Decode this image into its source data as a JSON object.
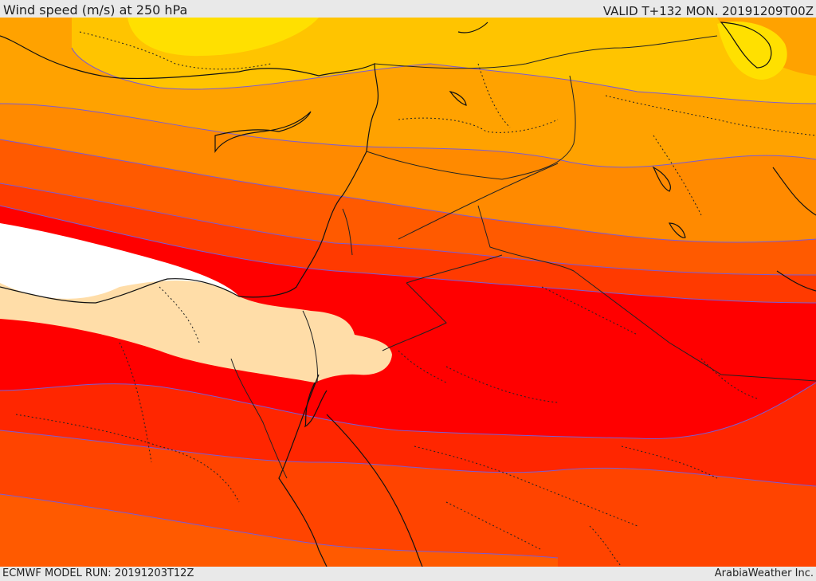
{
  "header": {
    "title": "Wind speed (m/s) at 250 hPa",
    "valid": "VALID T+132 MON. 20191209T00Z"
  },
  "footer": {
    "model_run": "ECMWF MODEL RUN: 20191203T12Z",
    "credit": "ArabiaWeather Inc."
  },
  "colors": {
    "background": "#e9e9e9",
    "contour_line": "#7a5bd6",
    "coastline": "#111111",
    "border": "#222222",
    "wind_bands": [
      "#ffe000",
      "#ffc400",
      "#ffa200",
      "#ff8400",
      "#ff6400",
      "#ff4400",
      "#ff2600",
      "#ff0000",
      "#ffdda8",
      "#ffffff"
    ]
  }
}
